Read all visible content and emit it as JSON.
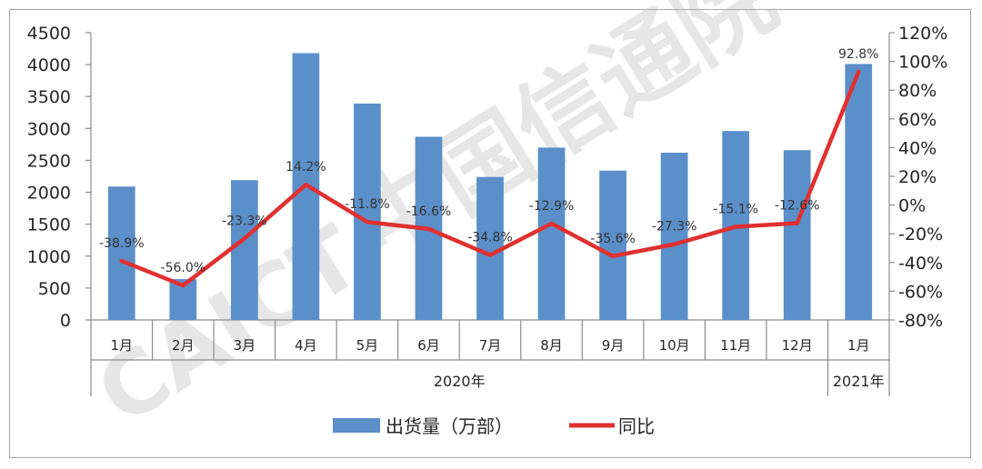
{
  "chart_data": {
    "type": "bar",
    "categories": [
      "1月",
      "2月",
      "3月",
      "4月",
      "5月",
      "6月",
      "7月",
      "8月",
      "9月",
      "10月",
      "11月",
      "12月",
      "1月"
    ],
    "groups": [
      {
        "label": "2020年",
        "span": 12
      },
      {
        "label": "2021年",
        "span": 1
      }
    ],
    "series": [
      {
        "name": "出货量（万部）",
        "type": "bar",
        "axis": "left",
        "color": "#5b8fc9",
        "values": [
          2090,
          640,
          2190,
          4180,
          3390,
          2870,
          2240,
          2700,
          2340,
          2620,
          2960,
          2660,
          4010
        ]
      },
      {
        "name": "同比",
        "type": "line",
        "axis": "right",
        "color": "#e03030",
        "values": [
          -38.9,
          -56.0,
          -23.3,
          14.2,
          -11.8,
          -16.6,
          -34.8,
          -12.9,
          -35.6,
          -27.3,
          -15.1,
          -12.6,
          92.8
        ],
        "labels": [
          "-38.9%",
          "-56.0%",
          "-23.3%",
          "14.2%",
          "-11.8%",
          "-16.6%",
          "-34.8%",
          "-12.9%",
          "-35.6%",
          "-27.3%",
          "-15.1%",
          "-12.6%",
          "92.8%"
        ]
      }
    ],
    "y_left": {
      "min": 0,
      "max": 4500,
      "step": 500,
      "ticks": [
        "0",
        "500",
        "1000",
        "1500",
        "2000",
        "2500",
        "3000",
        "3500",
        "4000",
        "4500"
      ]
    },
    "y_right": {
      "min": -80,
      "max": 120,
      "step": 20,
      "ticks": [
        "-80%",
        "-60%",
        "-40%",
        "-20%",
        "0%",
        "20%",
        "40%",
        "60%",
        "80%",
        "100%",
        "120%"
      ]
    },
    "grid": false,
    "legend_position": "bottom"
  },
  "watermark": {
    "latin": "CAICT",
    "chinese": "中国信通院"
  }
}
